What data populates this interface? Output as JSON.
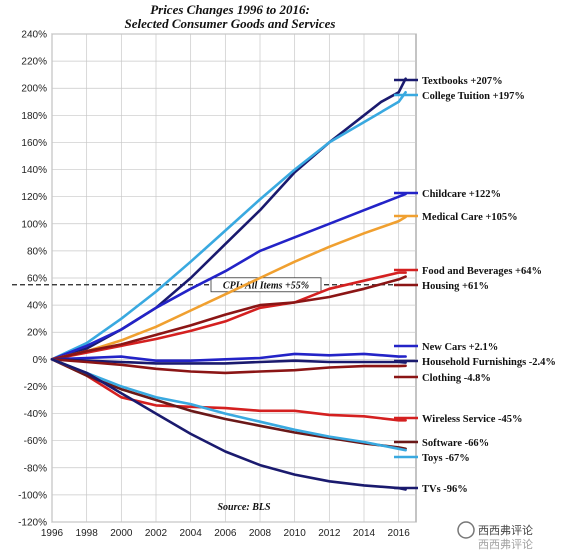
{
  "chart_data": {
    "type": "line",
    "title": "Prices Changes 1996 to 2016:",
    "subtitle": "Selected Consumer Goods and Services",
    "source": "Source: BLS",
    "x_ticks": [
      "1996",
      "1998",
      "2000",
      "2002",
      "2004",
      "2006",
      "2008",
      "2010",
      "2012",
      "2014",
      "2016"
    ],
    "y_ticks": [
      "240%",
      "220%",
      "200%",
      "180%",
      "160%",
      "140%",
      "120%",
      "100%",
      "80%",
      "60%",
      "40%",
      "20%",
      "0%",
      "-20%",
      "-40%",
      "-60%",
      "-80%",
      "-100%",
      "-120%"
    ],
    "xlim": [
      1996,
      2017
    ],
    "ylim": [
      -120,
      240
    ],
    "grid": true,
    "cpi": {
      "label": "CPI: All Items +55%",
      "value": 55,
      "color": "#222222"
    },
    "series": [
      {
        "name": "Textbooks +207%",
        "color": "#1a1a6e",
        "points": [
          [
            1996,
            0
          ],
          [
            1998,
            8
          ],
          [
            2000,
            22
          ],
          [
            2002,
            38
          ],
          [
            2004,
            60
          ],
          [
            2006,
            85
          ],
          [
            2008,
            110
          ],
          [
            2010,
            138
          ],
          [
            2012,
            160
          ],
          [
            2014,
            180
          ],
          [
            2015,
            190
          ],
          [
            2016,
            197
          ],
          [
            2016.4,
            207
          ]
        ]
      },
      {
        "name": "College Tuition +197%",
        "color": "#39a9e0",
        "points": [
          [
            1996,
            0
          ],
          [
            1998,
            12
          ],
          [
            2000,
            30
          ],
          [
            2002,
            50
          ],
          [
            2004,
            72
          ],
          [
            2006,
            95
          ],
          [
            2008,
            118
          ],
          [
            2010,
            140
          ],
          [
            2012,
            160
          ],
          [
            2014,
            175
          ],
          [
            2016,
            190
          ],
          [
            2016.4,
            197
          ]
        ]
      },
      {
        "name": "Childcare +122%",
        "color": "#2323c7",
        "points": [
          [
            1996,
            0
          ],
          [
            1998,
            10
          ],
          [
            2000,
            22
          ],
          [
            2002,
            38
          ],
          [
            2004,
            52
          ],
          [
            2006,
            65
          ],
          [
            2008,
            80
          ],
          [
            2010,
            90
          ],
          [
            2012,
            100
          ],
          [
            2014,
            110
          ],
          [
            2016,
            120
          ],
          [
            2016.4,
            122
          ]
        ]
      },
      {
        "name": "Medical Care +105%",
        "color": "#f0a030",
        "points": [
          [
            1996,
            0
          ],
          [
            1998,
            6
          ],
          [
            2000,
            14
          ],
          [
            2002,
            24
          ],
          [
            2004,
            36
          ],
          [
            2006,
            48
          ],
          [
            2008,
            60
          ],
          [
            2010,
            72
          ],
          [
            2012,
            83
          ],
          [
            2014,
            93
          ],
          [
            2016,
            102
          ],
          [
            2016.4,
            105
          ]
        ]
      },
      {
        "name": "Food and Beverages +64%",
        "color": "#d42020",
        "points": [
          [
            1996,
            0
          ],
          [
            1998,
            5
          ],
          [
            2000,
            10
          ],
          [
            2002,
            15
          ],
          [
            2004,
            21
          ],
          [
            2006,
            28
          ],
          [
            2008,
            38
          ],
          [
            2010,
            42
          ],
          [
            2012,
            52
          ],
          [
            2014,
            58
          ],
          [
            2016,
            64
          ],
          [
            2016.4,
            64
          ]
        ]
      },
      {
        "name": "Housing +61%",
        "color": "#8b1515",
        "points": [
          [
            1996,
            0
          ],
          [
            1998,
            6
          ],
          [
            2000,
            11
          ],
          [
            2002,
            18
          ],
          [
            2004,
            25
          ],
          [
            2006,
            33
          ],
          [
            2008,
            40
          ],
          [
            2010,
            42
          ],
          [
            2012,
            46
          ],
          [
            2014,
            52
          ],
          [
            2016,
            59
          ],
          [
            2016.4,
            61
          ]
        ]
      },
      {
        "name": "New Cars +2.1%",
        "color": "#2323c7",
        "points": [
          [
            1996,
            0
          ],
          [
            1998,
            1
          ],
          [
            2000,
            2
          ],
          [
            2002,
            -1
          ],
          [
            2004,
            -1
          ],
          [
            2006,
            0
          ],
          [
            2008,
            1
          ],
          [
            2010,
            4
          ],
          [
            2012,
            3
          ],
          [
            2014,
            4
          ],
          [
            2016,
            2
          ],
          [
            2016.4,
            2.1
          ]
        ]
      },
      {
        "name": "Household Furnishings -2.4%",
        "color": "#1a1a6e",
        "points": [
          [
            1996,
            0
          ],
          [
            1998,
            -1
          ],
          [
            2000,
            -2
          ],
          [
            2002,
            -3
          ],
          [
            2004,
            -3
          ],
          [
            2006,
            -3
          ],
          [
            2008,
            -2
          ],
          [
            2010,
            -1
          ],
          [
            2012,
            -2
          ],
          [
            2014,
            -2
          ],
          [
            2016,
            -2
          ],
          [
            2016.4,
            -2.4
          ]
        ]
      },
      {
        "name": "Clothing -4.8%",
        "color": "#8b1515",
        "points": [
          [
            1996,
            0
          ],
          [
            1998,
            -2
          ],
          [
            2000,
            -4
          ],
          [
            2002,
            -7
          ],
          [
            2004,
            -9
          ],
          [
            2006,
            -10
          ],
          [
            2008,
            -9
          ],
          [
            2010,
            -8
          ],
          [
            2012,
            -6
          ],
          [
            2014,
            -5
          ],
          [
            2016,
            -5
          ],
          [
            2016.4,
            -4.8
          ]
        ]
      },
      {
        "name": "Wireless Service -45%",
        "color": "#d42020",
        "points": [
          [
            1996,
            0
          ],
          [
            1998,
            -12
          ],
          [
            2000,
            -28
          ],
          [
            2002,
            -34
          ],
          [
            2004,
            -35
          ],
          [
            2006,
            -36
          ],
          [
            2008,
            -38
          ],
          [
            2010,
            -38
          ],
          [
            2012,
            -41
          ],
          [
            2014,
            -42
          ],
          [
            2016,
            -45
          ],
          [
            2016.4,
            -45
          ]
        ]
      },
      {
        "name": "Software -66%",
        "color": "#6a1818",
        "points": [
          [
            1996,
            0
          ],
          [
            1998,
            -12
          ],
          [
            2000,
            -22
          ],
          [
            2002,
            -30
          ],
          [
            2004,
            -38
          ],
          [
            2006,
            -44
          ],
          [
            2008,
            -49
          ],
          [
            2010,
            -54
          ],
          [
            2012,
            -58
          ],
          [
            2014,
            -62
          ],
          [
            2016,
            -65
          ],
          [
            2016.4,
            -66
          ]
        ]
      },
      {
        "name": "Toys -67%",
        "color": "#39a9e0",
        "points": [
          [
            1996,
            0
          ],
          [
            1998,
            -10
          ],
          [
            2000,
            -20
          ],
          [
            2002,
            -28
          ],
          [
            2004,
            -33
          ],
          [
            2006,
            -40
          ],
          [
            2008,
            -46
          ],
          [
            2010,
            -52
          ],
          [
            2012,
            -57
          ],
          [
            2014,
            -61
          ],
          [
            2016,
            -66
          ],
          [
            2016.4,
            -67
          ]
        ]
      },
      {
        "name": "TVs -96%",
        "color": "#1a1a6e",
        "points": [
          [
            1996,
            0
          ],
          [
            1998,
            -10
          ],
          [
            2000,
            -25
          ],
          [
            2002,
            -40
          ],
          [
            2004,
            -55
          ],
          [
            2006,
            -68
          ],
          [
            2008,
            -78
          ],
          [
            2010,
            -85
          ],
          [
            2012,
            -90
          ],
          [
            2014,
            -93
          ],
          [
            2016,
            -95
          ],
          [
            2016.4,
            -96
          ]
        ]
      }
    ]
  },
  "watermark": {
    "line1": "西西弗评论",
    "line2": "西西弗评论"
  }
}
